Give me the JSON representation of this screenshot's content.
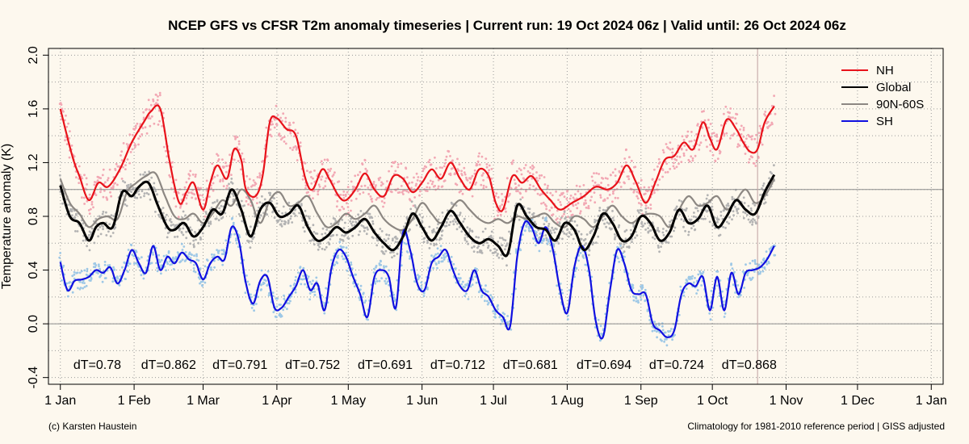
{
  "chart_data": {
    "type": "line",
    "title": "NCEP GFS vs CFSR T2m anomaly timeseries | Current run: 19 Oct 2024 06z | Valid until: 26 Oct 2024 06z",
    "ylabel": "Temperature anomaly (K)",
    "xlabel": "",
    "ylim": [
      -0.45,
      2.05
    ],
    "yticks": [
      "-0.4",
      "0.0",
      "0.4",
      "0.8",
      "1.2",
      "1.6",
      "2.0"
    ],
    "xticks": [
      "1 Jan",
      "1 Feb",
      "1 Mar",
      "1 Apr",
      "1 May",
      "1 Jun",
      "1 Jul",
      "1 Aug",
      "1 Sep",
      "1 Oct",
      "1 Nov",
      "1 Dec",
      "1 Jan"
    ],
    "xrange_days": [
      -5,
      371
    ],
    "current_day": 293,
    "reference_lines": [
      0.0,
      1.0
    ],
    "grid": true,
    "legend_position": "top-right",
    "colors": {
      "NH": "#e8121a",
      "Global": "#000000",
      "90N-60S": "#8c8782",
      "SH": "#1010e0",
      "NH_points": "#f2a8b4",
      "Global_points": "#b3b3b3",
      "SH_points": "#9ec8e6"
    },
    "monthly_dT": [
      "dT=0.78",
      "dT=0.862",
      "dT=0.791",
      "dT=0.752",
      "dT=0.691",
      "dT=0.712",
      "dT=0.681",
      "dT=0.694",
      "dT=0.724",
      "dT=0.868"
    ],
    "series": [
      {
        "name": "NH",
        "x": [
          0,
          5,
          8,
          12,
          16,
          20,
          25,
          30,
          35,
          38,
          42,
          46,
          50,
          53,
          56,
          60,
          63,
          66,
          70,
          73,
          76,
          78,
          82,
          85,
          88,
          91,
          95,
          99,
          103,
          106,
          110,
          113,
          117,
          120,
          124,
          128,
          132,
          136,
          140,
          144,
          148,
          152,
          156,
          160,
          164,
          168,
          172,
          176,
          180,
          183,
          186,
          190,
          194,
          198,
          202,
          206,
          210,
          215,
          220,
          225,
          230,
          234,
          238,
          242,
          246,
          250,
          254,
          258,
          262,
          266,
          270,
          273,
          276,
          280,
          284,
          287,
          290,
          293,
          296,
          300
        ],
        "y": [
          1.6,
          1.25,
          1.1,
          0.92,
          1.05,
          1.02,
          1.15,
          1.35,
          1.5,
          1.58,
          1.6,
          1.2,
          0.9,
          0.98,
          1.05,
          0.85,
          1.05,
          1.18,
          1.08,
          1.3,
          1.22,
          1.0,
          0.95,
          1.1,
          1.5,
          1.53,
          1.45,
          1.4,
          1.08,
          1.0,
          1.15,
          1.08,
          0.95,
          0.92,
          1.0,
          1.12,
          1.0,
          0.95,
          1.1,
          1.08,
          0.98,
          1.05,
          1.15,
          1.08,
          1.2,
          1.08,
          1.0,
          1.15,
          1.1,
          0.9,
          0.85,
          1.1,
          1.05,
          1.1,
          1.0,
          0.92,
          0.85,
          0.9,
          0.95,
          1.02,
          1.0,
          1.05,
          1.18,
          1.05,
          0.9,
          1.05,
          1.22,
          1.25,
          1.35,
          1.3,
          1.5,
          1.38,
          1.3,
          1.52,
          1.45,
          1.35,
          1.28,
          1.3,
          1.5,
          1.62
        ]
      },
      {
        "name": "Global",
        "x": [
          0,
          4,
          8,
          12,
          15,
          18,
          22,
          26,
          30,
          33,
          37,
          41,
          45,
          48,
          52,
          56,
          60,
          64,
          68,
          72,
          76,
          80,
          84,
          88,
          92,
          96,
          100,
          104,
          108,
          112,
          116,
          120,
          124,
          128,
          132,
          136,
          140,
          144,
          148,
          152,
          156,
          160,
          164,
          168,
          172,
          176,
          180,
          184,
          188,
          192,
          196,
          200,
          204,
          208,
          212,
          216,
          220,
          224,
          228,
          232,
          236,
          240,
          244,
          248,
          252,
          256,
          260,
          264,
          268,
          272,
          276,
          280,
          284,
          288,
          292,
          296,
          300
        ],
        "y": [
          1.03,
          0.8,
          0.75,
          0.62,
          0.72,
          0.75,
          0.72,
          0.98,
          0.95,
          1.02,
          1.05,
          0.88,
          0.72,
          0.7,
          0.75,
          0.65,
          0.72,
          0.85,
          0.82,
          1.0,
          0.85,
          0.65,
          0.85,
          0.9,
          0.8,
          0.82,
          0.88,
          0.72,
          0.62,
          0.65,
          0.72,
          0.68,
          0.72,
          0.78,
          0.68,
          0.6,
          0.55,
          0.65,
          0.82,
          0.72,
          0.62,
          0.72,
          0.84,
          0.75,
          0.65,
          0.6,
          0.63,
          0.58,
          0.52,
          0.88,
          0.8,
          0.72,
          0.7,
          0.62,
          0.75,
          0.7,
          0.55,
          0.65,
          0.82,
          0.75,
          0.62,
          0.65,
          0.8,
          0.75,
          0.62,
          0.68,
          0.85,
          0.75,
          0.78,
          0.88,
          0.72,
          0.8,
          0.92,
          0.85,
          0.82,
          0.98,
          1.11
        ]
      },
      {
        "name": "90N-60S",
        "x": [
          0,
          4,
          8,
          12,
          16,
          20,
          24,
          28,
          32,
          36,
          40,
          44,
          48,
          52,
          56,
          60,
          64,
          68,
          72,
          76,
          80,
          84,
          88,
          92,
          96,
          100,
          104,
          108,
          112,
          116,
          120,
          124,
          128,
          132,
          136,
          140,
          144,
          148,
          152,
          156,
          160,
          164,
          168,
          172,
          176,
          180,
          184,
          188,
          192,
          196,
          200,
          204,
          208,
          212,
          216,
          220,
          224,
          228,
          232,
          236,
          240,
          244,
          248,
          252,
          256,
          260,
          264,
          268,
          272,
          276,
          280,
          284,
          288,
          292,
          296,
          300
        ],
        "y": [
          1.08,
          0.9,
          0.82,
          0.72,
          0.78,
          0.8,
          0.78,
          0.98,
          1.05,
          1.1,
          1.12,
          0.95,
          0.8,
          0.78,
          0.82,
          0.75,
          0.82,
          0.92,
          0.88,
          1.0,
          0.92,
          0.75,
          0.92,
          0.98,
          0.88,
          0.9,
          0.95,
          0.82,
          0.72,
          0.75,
          0.82,
          0.78,
          0.82,
          0.88,
          0.78,
          0.72,
          0.7,
          0.78,
          0.9,
          0.82,
          0.75,
          0.85,
          0.92,
          0.85,
          0.78,
          0.75,
          0.78,
          0.75,
          0.8,
          0.78,
          0.8,
          0.82,
          0.75,
          0.72,
          0.8,
          0.78,
          0.72,
          0.8,
          0.88,
          0.8,
          0.75,
          0.8,
          0.82,
          0.8,
          0.72,
          0.85,
          0.95,
          0.88,
          0.9,
          0.95,
          0.85,
          0.92,
          1.0,
          0.9,
          0.95,
          1.08
        ]
      },
      {
        "name": "SH",
        "x": [
          0,
          3,
          6,
          9,
          12,
          15,
          18,
          21,
          24,
          27,
          30,
          33,
          36,
          39,
          42,
          45,
          48,
          51,
          54,
          57,
          60,
          63,
          66,
          69,
          72,
          75,
          78,
          81,
          84,
          87,
          90,
          93,
          96,
          99,
          102,
          105,
          108,
          111,
          114,
          117,
          120,
          123,
          126,
          129,
          132,
          135,
          138,
          141,
          144,
          147,
          150,
          153,
          156,
          159,
          162,
          165,
          168,
          171,
          174,
          177,
          180,
          183,
          186,
          189,
          192,
          195,
          198,
          201,
          204,
          207,
          210,
          213,
          216,
          219,
          222,
          225,
          228,
          231,
          234,
          237,
          240,
          243,
          246,
          249,
          252,
          255,
          258,
          261,
          264,
          267,
          270,
          273,
          276,
          279,
          282,
          285,
          288,
          291,
          294,
          297,
          300
        ],
        "y": [
          0.46,
          0.25,
          0.32,
          0.33,
          0.35,
          0.4,
          0.38,
          0.42,
          0.3,
          0.4,
          0.55,
          0.45,
          0.38,
          0.58,
          0.4,
          0.5,
          0.45,
          0.53,
          0.48,
          0.45,
          0.33,
          0.45,
          0.5,
          0.48,
          0.72,
          0.62,
          0.3,
          0.15,
          0.32,
          0.35,
          0.12,
          0.12,
          0.2,
          0.28,
          0.4,
          0.25,
          0.3,
          0.1,
          0.42,
          0.55,
          0.5,
          0.35,
          0.22,
          0.05,
          0.35,
          0.4,
          0.35,
          0.12,
          0.68,
          0.55,
          0.3,
          0.25,
          0.45,
          0.5,
          0.55,
          0.4,
          0.28,
          0.25,
          0.4,
          0.25,
          0.2,
          0.1,
          0.05,
          -0.02,
          0.5,
          0.75,
          0.72,
          0.6,
          0.72,
          0.55,
          0.25,
          0.08,
          0.42,
          0.58,
          0.42,
          0.02,
          -0.1,
          0.25,
          0.55,
          0.45,
          0.25,
          0.22,
          0.22,
          0.0,
          -0.05,
          -0.1,
          -0.05,
          0.22,
          0.3,
          0.28,
          0.35,
          0.1,
          0.35,
          0.1,
          0.38,
          0.22,
          0.38,
          0.4,
          0.42,
          0.48,
          0.58
        ]
      }
    ]
  },
  "footer": {
    "left": "(c) Karsten Haustein",
    "right": "Climatology for 1981-2010 reference period | GISS adjusted"
  }
}
